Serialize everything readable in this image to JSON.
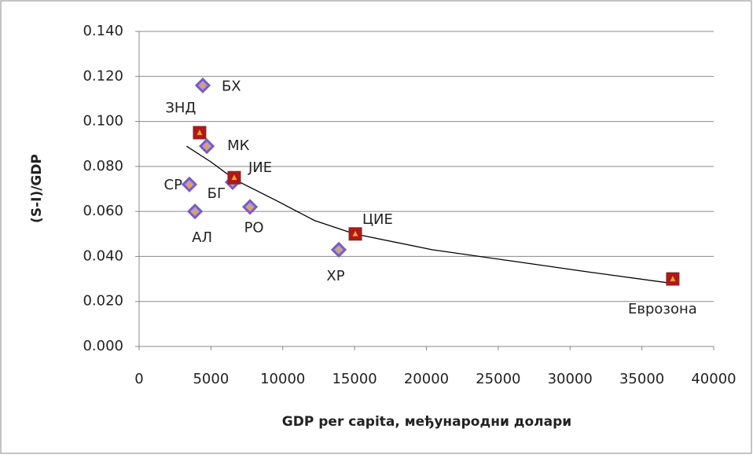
{
  "chart_data": {
    "type": "scatter",
    "x_label": "GDP per capita, међународни долари",
    "y_label": "(S-I)/GDP",
    "xlim": [
      0,
      40000
    ],
    "xticks": [
      0,
      5000,
      10000,
      15000,
      20000,
      25000,
      30000,
      35000,
      40000
    ],
    "ylim": [
      0,
      0.14
    ],
    "yticks": [
      {
        "value": 0,
        "label": "0.000"
      },
      {
        "value": 0.02,
        "label": "0.020"
      },
      {
        "value": 0.04,
        "label": "0.040"
      },
      {
        "value": 0.06,
        "label": "0.060"
      },
      {
        "value": 0.08,
        "label": "0.080"
      },
      {
        "value": 0.1,
        "label": "0.100"
      },
      {
        "value": 0.12,
        "label": "0.120"
      },
      {
        "value": 0.14,
        "label": "0.140"
      }
    ],
    "grid": true,
    "series": [
      {
        "marker": "diamond",
        "color": "#7a5cc0",
        "labels": [
          "БХ",
          "МК",
          "СР",
          "БГ",
          "АЛ",
          "РО",
          "ХР"
        ],
        "x": [
          4430,
          4710,
          3500,
          6510,
          3890,
          7720,
          13900
        ],
        "y": [
          0.116,
          0.089,
          0.072,
          0.073,
          0.06,
          0.062,
          0.043
        ]
      },
      {
        "marker": "square",
        "color": "#b01818",
        "labels": [
          "ЗНД",
          "ЈИЕ",
          "ЦИЕ",
          "Еврозона"
        ],
        "x": [
          4210,
          6620,
          15050,
          37150
        ],
        "y": [
          0.095,
          0.075,
          0.05,
          0.03
        ]
      }
    ],
    "trendline": {
      "color": "#000000",
      "x": [
        3300,
        5000,
        6700,
        9500,
        12200,
        15000,
        20400,
        25900,
        31400,
        37150
      ],
      "y": [
        0.089,
        0.082,
        0.074,
        0.065,
        0.056,
        0.05,
        0.043,
        0.038,
        0.033,
        0.028
      ]
    }
  }
}
